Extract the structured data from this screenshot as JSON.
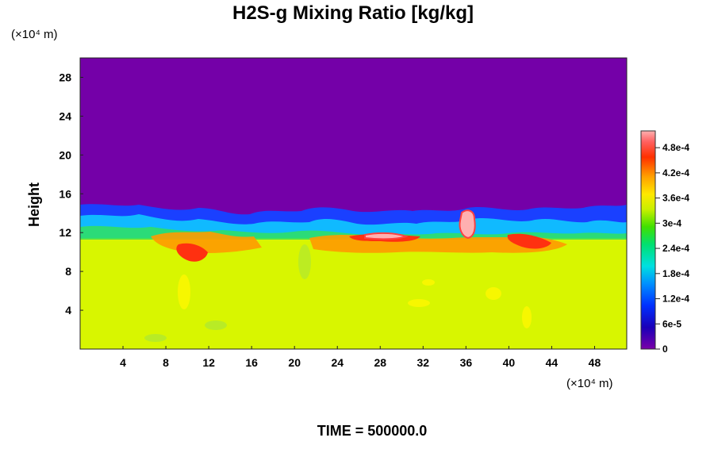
{
  "chart_data": {
    "type": "heatmap",
    "title": "H2S-g Mixing Ratio [kg/kg]",
    "ylabel": "Height",
    "y_unit_label": "(×10⁴ m)",
    "x_unit_label": "(×10⁴ m)",
    "footer": "TIME = 500000.0",
    "xlim": [
      0,
      51
    ],
    "ylim": [
      0,
      30
    ],
    "x_ticks": [
      "4",
      "8",
      "12",
      "16",
      "20",
      "24",
      "28",
      "32",
      "36",
      "40",
      "44",
      "48"
    ],
    "y_ticks": [
      "4",
      "8",
      "12",
      "16",
      "20",
      "24",
      "28"
    ],
    "colorbar": {
      "min": 0,
      "max": 0.00052,
      "tick_labels": [
        "0",
        "6e-5",
        "1.2e-4",
        "1.8e-4",
        "2.4e-4",
        "3e-4",
        "3.6e-4",
        "4.2e-4",
        "4.8e-4"
      ],
      "tick_values": [
        0,
        6e-05,
        0.00012,
        0.00018,
        0.00024,
        0.0003,
        0.00036,
        0.00042,
        0.00048
      ]
    },
    "field": {
      "upper_layer_value": 0,
      "lower_layer_value": 0.00033,
      "interface_height": 11,
      "mixing_top_height": 15
    }
  }
}
